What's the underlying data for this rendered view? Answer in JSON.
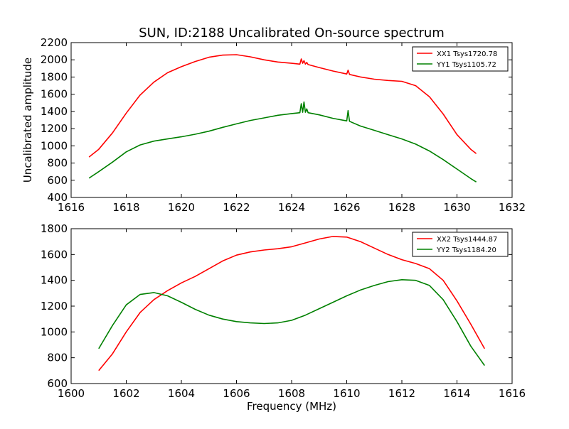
{
  "chart_data": [
    {
      "type": "line",
      "title": "SUN, ID:2188 Uncalibrated On-source spectrum",
      "xlabel": "",
      "ylabel": "Uncalibrated amplitude",
      "xlim": [
        1616,
        1632
      ],
      "ylim": [
        400,
        2200
      ],
      "xticks": [
        1616,
        1618,
        1620,
        1622,
        1624,
        1626,
        1628,
        1630,
        1632
      ],
      "yticks": [
        400,
        600,
        800,
        1000,
        1200,
        1400,
        1600,
        1800,
        2000,
        2200
      ],
      "grid": false,
      "legend_position": "top-right",
      "series": [
        {
          "name": "XX1 Tsys1720.78",
          "color": "#ff0000",
          "x": [
            1616.65,
            1617.0,
            1617.5,
            1618.0,
            1618.5,
            1619.0,
            1619.5,
            1620.0,
            1620.5,
            1621.0,
            1621.5,
            1622.0,
            1622.5,
            1623.0,
            1623.5,
            1624.0,
            1624.3,
            1624.35,
            1624.4,
            1624.45,
            1624.5,
            1624.55,
            1624.6,
            1625.0,
            1625.5,
            1626.0,
            1626.05,
            1626.1,
            1626.5,
            1627.0,
            1627.5,
            1628.0,
            1628.5,
            1629.0,
            1629.5,
            1630.0,
            1630.5,
            1630.7
          ],
          "values": [
            870,
            960,
            1150,
            1380,
            1590,
            1740,
            1850,
            1920,
            1980,
            2030,
            2055,
            2060,
            2035,
            2000,
            1975,
            1960,
            1950,
            2010,
            1960,
            1990,
            1950,
            1970,
            1945,
            1910,
            1870,
            1835,
            1880,
            1830,
            1800,
            1775,
            1760,
            1750,
            1700,
            1570,
            1370,
            1130,
            960,
            910
          ]
        },
        {
          "name": "YY1 Tsys1105.72",
          "color": "#008000",
          "x": [
            1616.65,
            1617.0,
            1617.5,
            1618.0,
            1618.5,
            1619.0,
            1619.5,
            1620.0,
            1620.5,
            1621.0,
            1621.5,
            1622.0,
            1622.5,
            1623.0,
            1623.5,
            1624.0,
            1624.3,
            1624.35,
            1624.4,
            1624.45,
            1624.5,
            1624.55,
            1624.6,
            1625.0,
            1625.5,
            1626.0,
            1626.05,
            1626.1,
            1626.5,
            1627.0,
            1627.5,
            1628.0,
            1628.5,
            1629.0,
            1629.5,
            1630.0,
            1630.5,
            1630.7
          ],
          "values": [
            625,
            700,
            810,
            930,
            1010,
            1055,
            1080,
            1105,
            1135,
            1170,
            1215,
            1255,
            1295,
            1325,
            1355,
            1375,
            1385,
            1490,
            1390,
            1510,
            1390,
            1430,
            1385,
            1360,
            1320,
            1290,
            1410,
            1285,
            1230,
            1180,
            1130,
            1080,
            1020,
            940,
            840,
            730,
            620,
            580
          ]
        }
      ]
    },
    {
      "type": "line",
      "title": "",
      "xlabel": "Frequency (MHz)",
      "ylabel": "",
      "xlim": [
        1600,
        1616
      ],
      "ylim": [
        600,
        1800
      ],
      "xticks": [
        1600,
        1602,
        1604,
        1606,
        1608,
        1610,
        1612,
        1614,
        1616
      ],
      "yticks": [
        600,
        800,
        1000,
        1200,
        1400,
        1600,
        1800
      ],
      "grid": false,
      "legend_position": "top-right",
      "series": [
        {
          "name": "XX2 Tsys1444.87",
          "color": "#ff0000",
          "x": [
            1601.0,
            1601.5,
            1602.0,
            1602.5,
            1603.0,
            1603.5,
            1604.0,
            1604.5,
            1605.0,
            1605.5,
            1606.0,
            1606.5,
            1607.0,
            1607.5,
            1608.0,
            1608.5,
            1609.0,
            1609.5,
            1610.0,
            1610.5,
            1611.0,
            1611.5,
            1612.0,
            1612.5,
            1613.0,
            1613.5,
            1614.0,
            1614.5,
            1615.0
          ],
          "values": [
            700,
            830,
            1000,
            1150,
            1250,
            1320,
            1380,
            1430,
            1490,
            1550,
            1595,
            1620,
            1635,
            1645,
            1660,
            1690,
            1720,
            1740,
            1735,
            1700,
            1650,
            1600,
            1560,
            1530,
            1490,
            1400,
            1240,
            1060,
            870
          ]
        },
        {
          "name": "YY2 Tsys1184.20",
          "color": "#008000",
          "x": [
            1601.0,
            1601.5,
            1602.0,
            1602.5,
            1603.0,
            1603.5,
            1604.0,
            1604.5,
            1605.0,
            1605.5,
            1606.0,
            1606.5,
            1607.0,
            1607.5,
            1608.0,
            1608.5,
            1609.0,
            1609.5,
            1610.0,
            1610.5,
            1611.0,
            1611.5,
            1612.0,
            1612.5,
            1613.0,
            1613.5,
            1614.0,
            1614.5,
            1615.0
          ],
          "values": [
            870,
            1050,
            1210,
            1290,
            1305,
            1280,
            1230,
            1175,
            1130,
            1100,
            1080,
            1070,
            1065,
            1070,
            1090,
            1130,
            1180,
            1230,
            1280,
            1325,
            1360,
            1390,
            1405,
            1400,
            1360,
            1250,
            1080,
            890,
            740
          ]
        }
      ]
    }
  ]
}
